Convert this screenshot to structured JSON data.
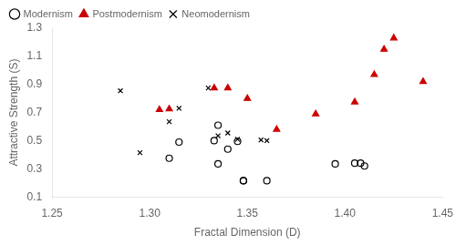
{
  "chart_data": {
    "type": "scatter",
    "xlabel": "Fractal Dimension (D)",
    "ylabel": "Attractive Strength (S)",
    "xlim": [
      1.25,
      1.45
    ],
    "ylim": [
      0.1,
      1.3
    ],
    "xticks": [
      {
        "value": 1.25,
        "label": "1.25"
      },
      {
        "value": 1.3,
        "label": "1.30"
      },
      {
        "value": 1.35,
        "label": "1.35"
      },
      {
        "value": 1.4,
        "label": "1.40"
      },
      {
        "value": 1.45,
        "label": "1.45"
      }
    ],
    "yticks": [
      0.1,
      0.3,
      0.5,
      0.7,
      0.9,
      1.1,
      1.3
    ],
    "grid": false,
    "legend": "upper left",
    "series": [
      {
        "name": "Modernism",
        "color": "black",
        "marker": "open circle",
        "x": [
          1.31,
          1.315,
          1.333,
          1.335,
          1.335,
          1.345,
          1.348,
          1.36,
          1.395,
          1.405,
          1.408,
          1.41,
          1.34,
          1.348
        ],
        "values": [
          0.375,
          0.49,
          0.5,
          0.335,
          0.61,
          0.495,
          0.215,
          0.215,
          0.335,
          0.34,
          0.34,
          0.32,
          0.44,
          0.215
        ]
      },
      {
        "name": "Postmodernism",
        "color": "#cc0000",
        "marker": "triangle",
        "x": [
          1.305,
          1.31,
          1.333,
          1.34,
          1.35,
          1.365,
          1.385,
          1.405,
          1.415,
          1.42,
          1.425,
          1.44
        ],
        "values": [
          0.72,
          0.725,
          0.875,
          0.875,
          0.8,
          0.58,
          0.69,
          0.775,
          0.97,
          1.15,
          1.23,
          0.92
        ]
      },
      {
        "name": "Neomodernism",
        "color": "black",
        "marker": "x",
        "x": [
          1.285,
          1.295,
          1.31,
          1.315,
          1.33,
          1.335,
          1.34,
          1.345,
          1.357,
          1.36
        ],
        "values": [
          0.855,
          0.415,
          0.635,
          0.73,
          0.875,
          0.535,
          0.555,
          0.51,
          0.505,
          0.5
        ]
      }
    ]
  }
}
